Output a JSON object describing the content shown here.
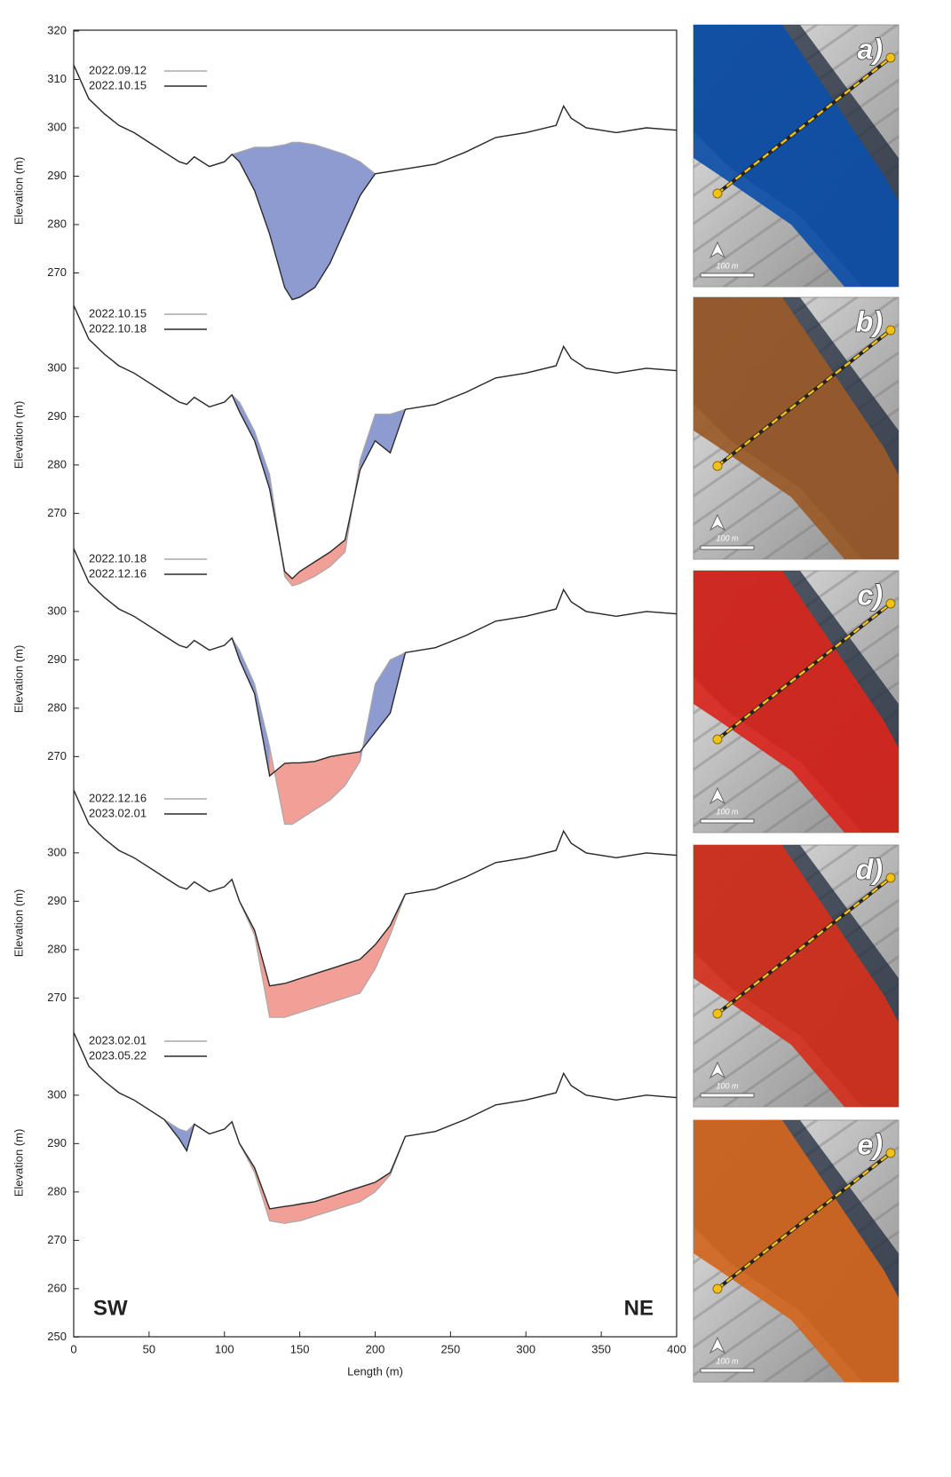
{
  "chart_data": [
    {
      "type": "line",
      "ylabel": "Elevation (m)",
      "panel_label": "a)",
      "scale_label": "100 m",
      "map_color": "#0d4fa8",
      "x": [
        0,
        10,
        20,
        30,
        40,
        50,
        60,
        70,
        75,
        80,
        90,
        100,
        105,
        110,
        120,
        130,
        140,
        145,
        150,
        160,
        170,
        180,
        190,
        200,
        210,
        220,
        240,
        260,
        280,
        300,
        320,
        325,
        330,
        340,
        360,
        380,
        400
      ],
      "xlim": [
        0,
        400
      ],
      "ylim": [
        262,
        320
      ],
      "yticks": [
        270,
        280,
        290,
        300,
        310,
        320
      ],
      "fill_colors": {
        "loss": "#8e9bd0",
        "gain": "#f2a097"
      },
      "series": [
        {
          "name": "2022.09.12",
          "color": "#a8a8a8",
          "values": [
            313,
            306,
            303,
            300.5,
            299,
            297,
            295,
            293,
            292.5,
            294,
            292,
            293,
            294.5,
            295,
            296,
            296,
            296.5,
            297,
            297,
            296.5,
            295.5,
            294.5,
            293,
            290.5,
            291,
            291.5,
            292.5,
            295,
            298,
            299,
            300.5,
            304.5,
            302,
            300,
            299,
            300,
            299.5
          ]
        },
        {
          "name": "2022.10.15",
          "color": "#2a2a2a",
          "values": [
            313,
            306,
            303,
            300.5,
            299,
            297,
            295,
            293,
            292.5,
            294,
            292,
            293,
            294.5,
            293,
            287,
            278,
            267,
            264.5,
            265,
            267,
            272,
            279,
            286,
            290.5,
            291,
            291.5,
            292.5,
            295,
            298,
            299,
            300.5,
            304.5,
            302,
            300,
            299,
            300,
            299.5
          ]
        }
      ]
    },
    {
      "type": "line",
      "ylabel": "Elevation (m)",
      "panel_label": "b)",
      "scale_label": "100 m",
      "map_color": "#9a5a28",
      "x": [
        0,
        10,
        20,
        30,
        40,
        50,
        60,
        70,
        75,
        80,
        90,
        100,
        105,
        110,
        120,
        130,
        140,
        145,
        150,
        160,
        170,
        180,
        190,
        200,
        210,
        220,
        240,
        260,
        280,
        300,
        320,
        325,
        330,
        340,
        360,
        380,
        400
      ],
      "xlim": [
        0,
        400
      ],
      "ylim": [
        254,
        313
      ],
      "yticks": [
        270,
        280,
        290,
        300
      ],
      "fill_colors": {
        "loss": "#8e9bd0",
        "gain": "#f2a097"
      },
      "series": [
        {
          "name": "2022.10.15",
          "color": "#a8a8a8",
          "values": [
            313,
            306,
            303,
            300.5,
            299,
            297,
            295,
            293,
            292.5,
            294,
            292,
            293,
            294.5,
            293,
            287,
            278,
            257,
            255,
            255.5,
            257,
            259,
            262,
            281,
            290.5,
            290.5,
            291.5,
            292.5,
            295,
            298,
            299,
            300.5,
            304.5,
            302,
            300,
            299,
            300,
            299.5
          ]
        },
        {
          "name": "2022.10.18",
          "color": "#2a2a2a",
          "values": [
            313,
            306,
            303,
            300.5,
            299,
            297,
            295,
            293,
            292.5,
            294,
            292,
            293,
            294.5,
            291,
            285,
            275,
            258,
            256.5,
            258,
            260,
            262,
            264.5,
            279,
            285,
            282.5,
            291.5,
            292.5,
            295,
            298,
            299,
            300.5,
            304.5,
            302,
            300,
            299,
            300,
            299.5
          ]
        }
      ]
    },
    {
      "type": "line",
      "ylabel": "Elevation (m)",
      "panel_label": "c)",
      "scale_label": "100 m",
      "map_color": "#d8261c",
      "x": [
        0,
        10,
        20,
        30,
        40,
        50,
        60,
        70,
        75,
        80,
        90,
        100,
        105,
        110,
        120,
        130,
        140,
        145,
        150,
        160,
        170,
        180,
        190,
        200,
        210,
        220,
        240,
        260,
        280,
        300,
        320,
        325,
        330,
        340,
        360,
        380,
        400
      ],
      "xlim": [
        0,
        400
      ],
      "ylim": [
        254,
        313
      ],
      "yticks": [
        270,
        280,
        290,
        300
      ],
      "fill_colors": {
        "loss": "#8e9bd0",
        "gain": "#f2a097"
      },
      "series": [
        {
          "name": "2022.10.18",
          "color": "#a8a8a8",
          "values": [
            313,
            306,
            303,
            300.5,
            299,
            297,
            295,
            293,
            292.5,
            294,
            292,
            293,
            294.5,
            292,
            285,
            272,
            256,
            256,
            257,
            259,
            261,
            264,
            269,
            285,
            290,
            291.5,
            292.5,
            295,
            298,
            299,
            300.5,
            304.5,
            302,
            300,
            299,
            300,
            299.5
          ]
        },
        {
          "name": "2022.12.16",
          "color": "#2a2a2a",
          "values": [
            313,
            306,
            303,
            300.5,
            299,
            297,
            295,
            293,
            292.5,
            294,
            292,
            293,
            294.5,
            290,
            283,
            266,
            268.6,
            268.7,
            268.7,
            269,
            270,
            270.5,
            271,
            275,
            279,
            291.5,
            292.5,
            295,
            298,
            299,
            300.5,
            304.5,
            302,
            300,
            299,
            300,
            299.5
          ]
        }
      ]
    },
    {
      "type": "line",
      "ylabel": "Elevation (m)",
      "panel_label": "d)",
      "scale_label": "100 m",
      "map_color": "#d4301c",
      "x": [
        0,
        10,
        20,
        30,
        40,
        50,
        60,
        70,
        75,
        80,
        90,
        100,
        105,
        110,
        120,
        130,
        140,
        145,
        150,
        160,
        170,
        180,
        190,
        200,
        210,
        220,
        240,
        260,
        280,
        300,
        320,
        325,
        330,
        340,
        360,
        380,
        400
      ],
      "xlim": [
        0,
        400
      ],
      "ylim": [
        262,
        313
      ],
      "yticks": [
        270,
        280,
        290,
        300
      ],
      "fill_colors": {
        "loss": "#8e9bd0",
        "gain": "#f2a097"
      },
      "series": [
        {
          "name": "2022.12.16",
          "color": "#a8a8a8",
          "values": [
            313,
            306,
            303,
            300.5,
            299,
            297,
            295,
            293,
            292.5,
            294,
            292,
            293,
            294.5,
            290,
            283,
            266,
            266,
            266.5,
            267,
            268,
            269,
            270,
            271,
            276,
            283,
            291.5,
            292.5,
            295,
            298,
            299,
            300.5,
            304.5,
            302,
            300,
            299,
            300,
            299.5
          ]
        },
        {
          "name": "2023.02.01",
          "color": "#2a2a2a",
          "values": [
            313,
            306,
            303,
            300.5,
            299,
            297,
            295,
            293,
            292.5,
            294,
            292,
            293,
            294.5,
            290,
            284,
            272.5,
            273,
            273.5,
            274,
            275,
            276,
            277,
            278,
            281,
            285,
            291.5,
            292.5,
            295,
            298,
            299,
            300.5,
            304.5,
            302,
            300,
            299,
            300,
            299.5
          ]
        }
      ]
    },
    {
      "type": "line",
      "ylabel": "Elevation (m)",
      "panel_label": "e)",
      "scale_label": "100 m",
      "map_color": "#d2661e",
      "x": [
        0,
        10,
        20,
        30,
        40,
        50,
        60,
        70,
        75,
        80,
        90,
        100,
        105,
        110,
        120,
        130,
        140,
        145,
        150,
        160,
        170,
        180,
        190,
        200,
        210,
        220,
        240,
        260,
        280,
        300,
        320,
        325,
        330,
        340,
        360,
        380,
        400
      ],
      "xlim": [
        0,
        400
      ],
      "ylim": [
        250,
        313
      ],
      "yticks": [
        250,
        260,
        270,
        280,
        290,
        300
      ],
      "xticks": [
        0,
        50,
        100,
        150,
        200,
        250,
        300,
        350,
        400
      ],
      "xlabel": "Length (m)",
      "annotations": [
        "SW",
        "NE"
      ],
      "fill_colors": {
        "loss": "#8e9bd0",
        "gain": "#f2a097"
      },
      "series": [
        {
          "name": "2023.02.01",
          "color": "#a8a8a8",
          "values": [
            313,
            306,
            303,
            300.5,
            299,
            297,
            295,
            293,
            292.5,
            294,
            292,
            293,
            294.5,
            290,
            284,
            274,
            273.5,
            273.8,
            274,
            275,
            276,
            277,
            278,
            280,
            283.5,
            291.5,
            292.5,
            295,
            298,
            299,
            300.5,
            304.5,
            302,
            300,
            299,
            300,
            299.5
          ]
        },
        {
          "name": "2023.05.22",
          "color": "#2a2a2a",
          "values": [
            313,
            306,
            303,
            300.5,
            299,
            297,
            295,
            291,
            288.5,
            294,
            292,
            293,
            294.5,
            290,
            285,
            276.5,
            277,
            277.2,
            277.5,
            278,
            279,
            280,
            281,
            282,
            284,
            291.5,
            292.5,
            295,
            298,
            299,
            300.5,
            304.5,
            302,
            300,
            299,
            300,
            299.5
          ]
        }
      ]
    }
  ]
}
